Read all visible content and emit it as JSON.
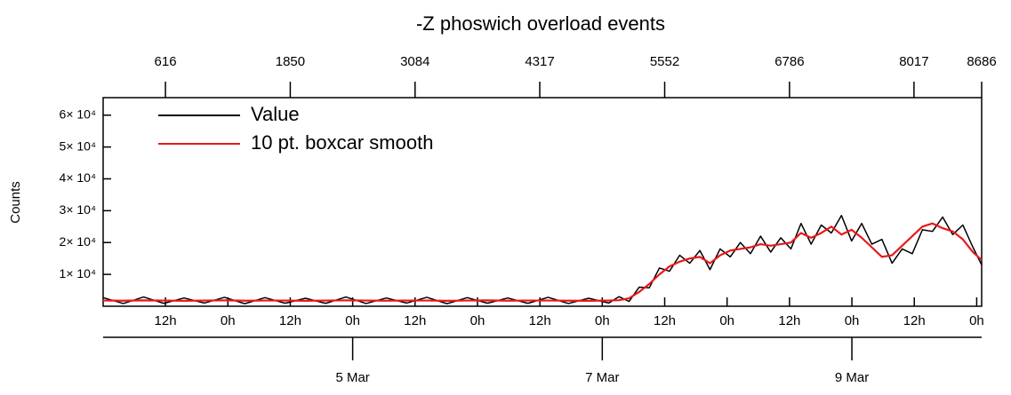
{
  "chart_data": {
    "type": "line",
    "title": "-Z phoswich overload events",
    "ylabel": "Counts",
    "legend": "upper left",
    "x": [
      0,
      200,
      400,
      600,
      800,
      1000,
      1200,
      1400,
      1600,
      1800,
      2000,
      2200,
      2400,
      2600,
      2800,
      3000,
      3200,
      3400,
      3600,
      3800,
      4000,
      4200,
      4400,
      4600,
      4800,
      5000,
      5100,
      5200,
      5300,
      5400,
      5500,
      5600,
      5700,
      5800,
      5900,
      6000,
      6100,
      6200,
      6300,
      6400,
      6500,
      6600,
      6700,
      6800,
      6900,
      7000,
      7100,
      7200,
      7300,
      7400,
      7500,
      7600,
      7700,
      7800,
      7900,
      8000,
      8100,
      8200,
      8300,
      8400,
      8500,
      8600,
      8686
    ],
    "series": [
      {
        "name": "Value",
        "color": "#000000",
        "values": [
          2700,
          850,
          2900,
          900,
          2600,
          1000,
          2800,
          800,
          2700,
          950,
          2500,
          900,
          2900,
          850,
          2600,
          1000,
          2800,
          800,
          2700,
          950,
          2600,
          900,
          2800,
          850,
          2500,
          1000,
          3000,
          1500,
          6000,
          5800,
          12000,
          11000,
          16000,
          13500,
          17500,
          11500,
          18000,
          15500,
          20000,
          16500,
          22000,
          17000,
          21500,
          18000,
          26000,
          19500,
          25500,
          23000,
          28500,
          20500,
          26000,
          19500,
          21000,
          13500,
          18000,
          16500,
          24000,
          23500,
          28000,
          22500,
          25500,
          18500,
          13000
        ]
      },
      {
        "name": "10 pt. boxcar smooth",
        "color": "#e8191b",
        "values": [
          1800,
          1750,
          1850,
          1800,
          1700,
          1800,
          1850,
          1750,
          1800,
          1800,
          1700,
          1800,
          1850,
          1800,
          1750,
          1800,
          1800,
          1700,
          1800,
          1850,
          1750,
          1800,
          1800,
          1750,
          1700,
          1800,
          1900,
          2500,
          4500,
          7000,
          10000,
          12500,
          14000,
          15000,
          15500,
          13500,
          16000,
          17500,
          18000,
          18500,
          19500,
          19000,
          19500,
          20000,
          23000,
          21500,
          23000,
          25000,
          22500,
          24000,
          21500,
          18500,
          15500,
          16000,
          19000,
          22000,
          25000,
          26000,
          24500,
          23500,
          21000,
          17000,
          14500
        ]
      }
    ],
    "xlim": [
      0,
      8686
    ],
    "xticks": [
      616,
      1850,
      3084,
      4317,
      5552,
      6786,
      8017,
      8686
    ],
    "time_ticks": [
      {
        "value": 616,
        "label": "12h"
      },
      {
        "value": 1233,
        "label": "0h"
      },
      {
        "value": 1850,
        "label": "12h"
      },
      {
        "value": 2467,
        "label": "0h"
      },
      {
        "value": 3084,
        "label": "12h"
      },
      {
        "value": 3701,
        "label": "0h"
      },
      {
        "value": 4318,
        "label": "12h"
      },
      {
        "value": 4935,
        "label": "0h"
      },
      {
        "value": 5552,
        "label": "12h"
      },
      {
        "value": 6169,
        "label": "0h"
      },
      {
        "value": 6786,
        "label": "12h"
      },
      {
        "value": 7403,
        "label": "0h"
      },
      {
        "value": 8020,
        "label": "12h"
      },
      {
        "value": 8637,
        "label": "0h"
      }
    ],
    "date_ticks": [
      {
        "value": 2467,
        "label": "5 Mar"
      },
      {
        "value": 4935,
        "label": "7 Mar"
      },
      {
        "value": 7403,
        "label": "9 Mar"
      }
    ],
    "ylim": [
      0,
      65500
    ],
    "yticks": [
      {
        "value": 10000,
        "label": "1× 10⁴"
      },
      {
        "value": 20000,
        "label": "2× 10⁴"
      },
      {
        "value": 30000,
        "label": "3× 10⁴"
      },
      {
        "value": 40000,
        "label": "4× 10⁴"
      },
      {
        "value": 50000,
        "label": "5× 10⁴"
      },
      {
        "value": 60000,
        "label": "6× 10⁴"
      }
    ]
  }
}
